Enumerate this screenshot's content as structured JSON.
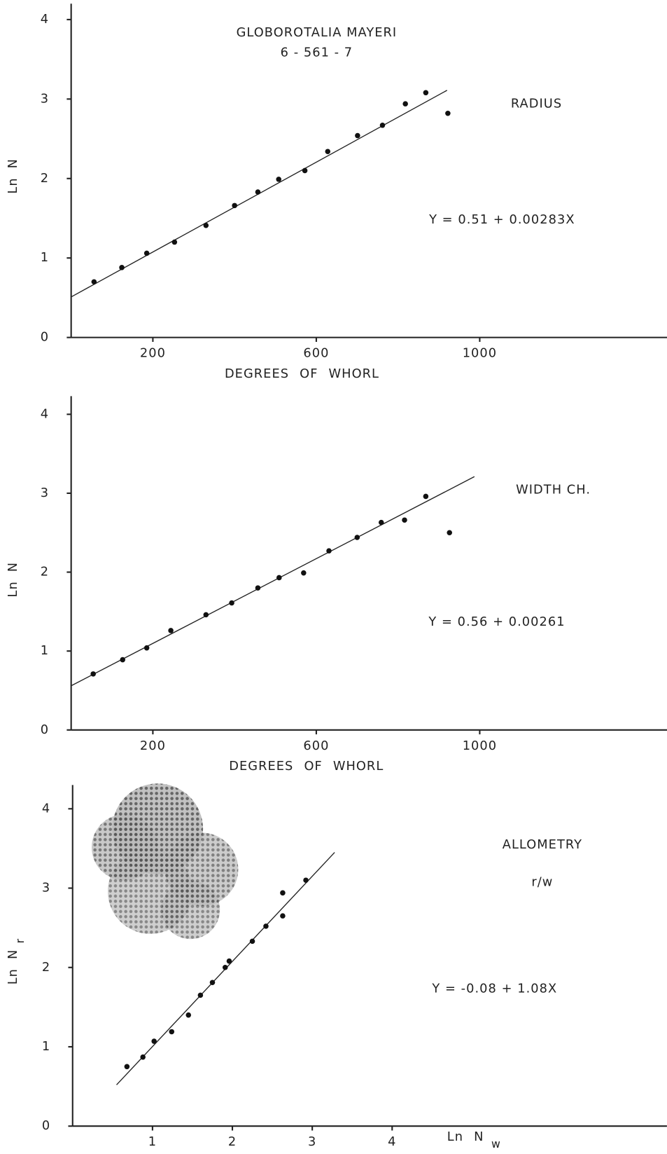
{
  "chart_data": [
    {
      "type": "scatter",
      "title": "GLOBOROTALIA MAYERI",
      "subtitle": "6 - 561 - 7",
      "x_label": "DEGREES OF WHORL",
      "y_label": "Ln N",
      "annotations": [
        "RADIUS",
        "Y = 0.51 + 0.00283X"
      ],
      "x": [
        56,
        124,
        185,
        253,
        330,
        400,
        457,
        508,
        572,
        628,
        701,
        762,
        818,
        868,
        922
      ],
      "values": [
        0.7,
        0.88,
        1.06,
        1.2,
        1.41,
        1.66,
        1.83,
        1.99,
        2.1,
        2.34,
        2.54,
        2.67,
        2.94,
        3.08,
        2.82
      ],
      "color": "#111111",
      "fit_line": {
        "x": [
          0,
          920
        ],
        "y": [
          0.51,
          3.11
        ]
      },
      "xlim": [
        0,
        1460
      ],
      "ylim": [
        0,
        4.2
      ],
      "xticks": [
        200,
        600,
        1000
      ],
      "yticks": [
        0,
        1,
        2,
        3,
        4
      ]
    },
    {
      "type": "scatter",
      "x_label": "DEGREES OF WHORL",
      "y_label": "Ln N",
      "annotations": [
        "WIDTH CH.",
        "Y = 0.56 + 0.00261"
      ],
      "x": [
        54,
        126,
        185,
        244,
        330,
        393,
        457,
        509,
        569,
        631,
        700,
        759,
        816,
        868,
        926
      ],
      "values": [
        0.71,
        0.89,
        1.04,
        1.26,
        1.46,
        1.61,
        1.8,
        1.93,
        1.99,
        2.27,
        2.44,
        2.63,
        2.66,
        2.96,
        2.5
      ],
      "color": "#111111",
      "fit_line": {
        "x": [
          0,
          987
        ],
        "y": [
          0.56,
          3.21
        ]
      },
      "xlim": [
        0,
        1460
      ],
      "ylim": [
        0,
        4.23
      ],
      "xticks": [
        200,
        600,
        1000
      ],
      "yticks": [
        0,
        1,
        2,
        3,
        4
      ]
    },
    {
      "type": "scatter",
      "x_label": "Ln N",
      "x_label_subscript": "w",
      "y_label": "Ln N",
      "y_label_subscript": "r",
      "annotations": [
        "ALLOMETRY",
        "r/w",
        "Y = -0.08 + 1.08X"
      ],
      "x": [
        0.68,
        0.88,
        1.02,
        1.24,
        1.45,
        1.6,
        1.75,
        1.91,
        1.96,
        2.25,
        2.42,
        2.63,
        2.63,
        2.92
      ],
      "values": [
        0.75,
        0.87,
        1.07,
        1.19,
        1.4,
        1.65,
        1.81,
        2.0,
        2.08,
        2.33,
        2.52,
        2.65,
        2.94,
        3.1
      ],
      "color": "#111111",
      "fit_line": {
        "x": [
          0.55,
          3.28
        ],
        "y": [
          0.52,
          3.45
        ]
      },
      "xlim": [
        0,
        7.44
      ],
      "ylim": [
        0,
        4.3
      ],
      "xticks": [
        1,
        2,
        3,
        4
      ],
      "yticks": [
        0,
        1,
        2,
        3,
        4
      ]
    }
  ]
}
